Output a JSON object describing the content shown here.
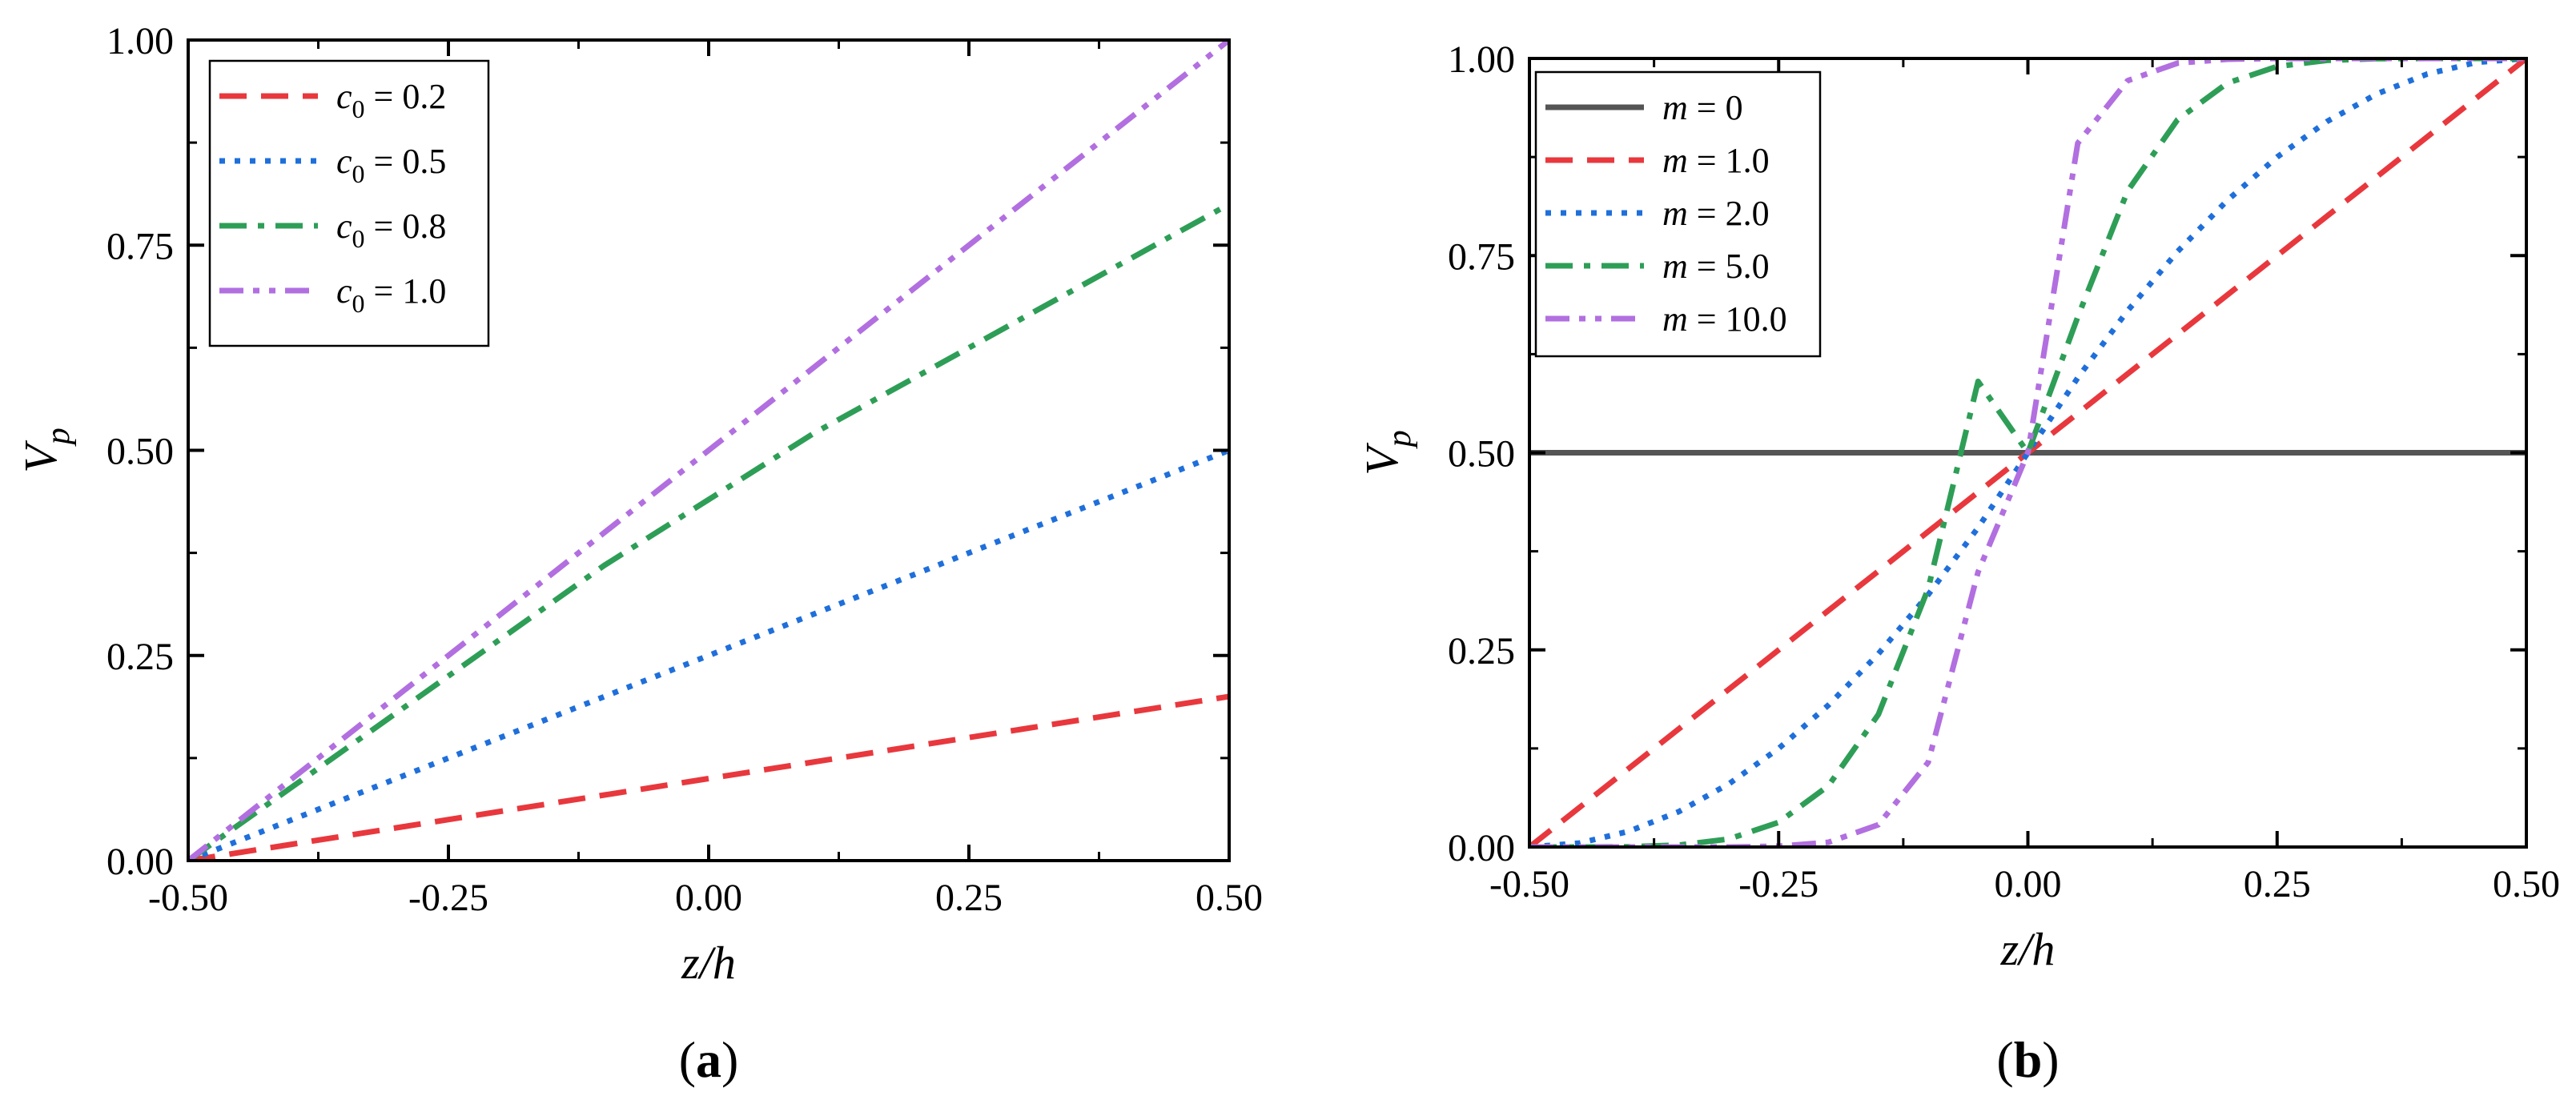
{
  "chart_data": [
    {
      "type": "line",
      "panel_label": "(a)",
      "panel_letter": "a",
      "xlabel": "z/h",
      "ylabel": "V",
      "ylabel_sub": "p",
      "xlim": [
        -0.5,
        0.5
      ],
      "ylim": [
        0,
        1
      ],
      "xticks": [
        "-0.50",
        "-0.25",
        "0.00",
        "0.25",
        "0.50"
      ],
      "xtick_values": [
        -0.5,
        -0.25,
        0,
        0.25,
        0.5
      ],
      "yticks": [
        "0.00",
        "0.25",
        "0.50",
        "0.75",
        "1.00"
      ],
      "ytick_values": [
        0,
        0.25,
        0.5,
        0.75,
        1.0
      ],
      "legend_position": "top-left",
      "x": [
        -0.5,
        -0.4,
        -0.3,
        -0.2,
        -0.1,
        0.0,
        0.1,
        0.2,
        0.3,
        0.4,
        0.5
      ],
      "series": [
        {
          "name": "c0 = 0.2",
          "var": "c",
          "sub": "0",
          "value_text": " = 0.2",
          "color": "#e8383d",
          "dash": "dashed",
          "values": [
            0,
            0.02,
            0.04,
            0.06,
            0.08,
            0.1,
            0.12,
            0.14,
            0.16,
            0.18,
            0.2
          ]
        },
        {
          "name": "c0 = 0.5",
          "var": "c",
          "sub": "0",
          "value_text": " = 0.5",
          "color": "#1f6fdb",
          "dash": "dotted",
          "values": [
            0,
            0.05,
            0.1,
            0.15,
            0.2,
            0.25,
            0.3,
            0.35,
            0.4,
            0.45,
            0.5
          ]
        },
        {
          "name": "c0 = 0.8",
          "var": "c",
          "sub": "0",
          "value_text": " = 0.8",
          "color": "#2e9e57",
          "dash": "dashdot",
          "values": [
            0,
            0.09,
            0.18,
            0.27,
            0.36,
            0.44,
            0.52,
            0.59,
            0.66,
            0.73,
            0.8
          ]
        },
        {
          "name": "c0 = 1.0",
          "var": "c",
          "sub": "0",
          "value_text": " = 1.0",
          "color": "#b26fe0",
          "dash": "dashdotdot",
          "values": [
            0,
            0.1,
            0.2,
            0.3,
            0.4,
            0.5,
            0.6,
            0.7,
            0.8,
            0.9,
            1.0
          ]
        }
      ]
    },
    {
      "type": "line",
      "panel_label": "(b)",
      "panel_letter": "b",
      "xlabel": "z/h",
      "ylabel": "V",
      "ylabel_sub": "p",
      "xlim": [
        -0.5,
        0.5
      ],
      "ylim": [
        0,
        1
      ],
      "xticks": [
        "-0.50",
        "-0.25",
        "0.00",
        "0.25",
        "0.50"
      ],
      "xtick_values": [
        -0.5,
        -0.25,
        0,
        0.25,
        0.5
      ],
      "yticks": [
        "0.00",
        "0.25",
        "0.50",
        "0.75",
        "1.00"
      ],
      "ytick_values": [
        0,
        0.25,
        0.5,
        0.75,
        1.0
      ],
      "legend_position": "top-left",
      "x": [
        -0.5,
        -0.45,
        -0.4,
        -0.35,
        -0.3,
        -0.25,
        -0.2,
        -0.15,
        -0.1,
        -0.05,
        0.0,
        0.05,
        0.1,
        0.15,
        0.2,
        0.25,
        0.3,
        0.35,
        0.4,
        0.45,
        0.5
      ],
      "series": [
        {
          "name": "m = 0",
          "var": "m",
          "sub": "",
          "value_text": " = 0",
          "color": "#555555",
          "dash": "solid",
          "values": [
            0.5,
            0.5,
            0.5,
            0.5,
            0.5,
            0.5,
            0.5,
            0.5,
            0.5,
            0.5,
            0.5,
            0.5,
            0.5,
            0.5,
            0.5,
            0.5,
            0.5,
            0.5,
            0.5,
            0.5,
            0.5
          ]
        },
        {
          "name": "m = 1.0",
          "var": "m",
          "sub": "",
          "value_text": " = 1.0",
          "color": "#e8383d",
          "dash": "dashed",
          "values": [
            0,
            0.05,
            0.1,
            0.15,
            0.2,
            0.25,
            0.3,
            0.35,
            0.4,
            0.45,
            0.5,
            0.55,
            0.6,
            0.65,
            0.7,
            0.75,
            0.8,
            0.85,
            0.9,
            0.95,
            1.0
          ]
        },
        {
          "name": "m = 2.0",
          "var": "m",
          "sub": "",
          "value_text": " = 2.0",
          "color": "#1f6fdb",
          "dash": "dotted",
          "values": [
            0,
            0.005,
            0.02,
            0.045,
            0.08,
            0.125,
            0.18,
            0.245,
            0.32,
            0.405,
            0.5,
            0.595,
            0.68,
            0.755,
            0.82,
            0.875,
            0.92,
            0.955,
            0.98,
            0.995,
            1.0
          ]
        },
        {
          "name": "m = 5.0",
          "var": "m",
          "sub": "",
          "value_text": " = 5.0",
          "color": "#2e9e57",
          "dash": "dashdot",
          "values": [
            0,
            0.0,
            0.0003,
            0.0024,
            0.0102,
            0.0313,
            0.0778,
            0.1681,
            0.3277,
            0.5905,
            0.5,
            0.6723,
            0.8319,
            0.9222,
            0.9687,
            0.9898,
            0.9976,
            0.9997,
            1.0,
            1.0,
            1.0
          ]
        },
        {
          "name": "m = 10.0",
          "var": "m",
          "sub": "",
          "value_text": " = 10.0",
          "color": "#b26fe0",
          "dash": "dashdotdot",
          "values": [
            0,
            0.0,
            0.0,
            0.0,
            0.0,
            0.001,
            0.006,
            0.0282,
            0.1074,
            0.3487,
            0.5,
            0.8926,
            0.9718,
            0.994,
            0.999,
            1.0,
            1.0,
            1.0,
            1.0,
            1.0,
            1.0
          ]
        }
      ]
    }
  ]
}
